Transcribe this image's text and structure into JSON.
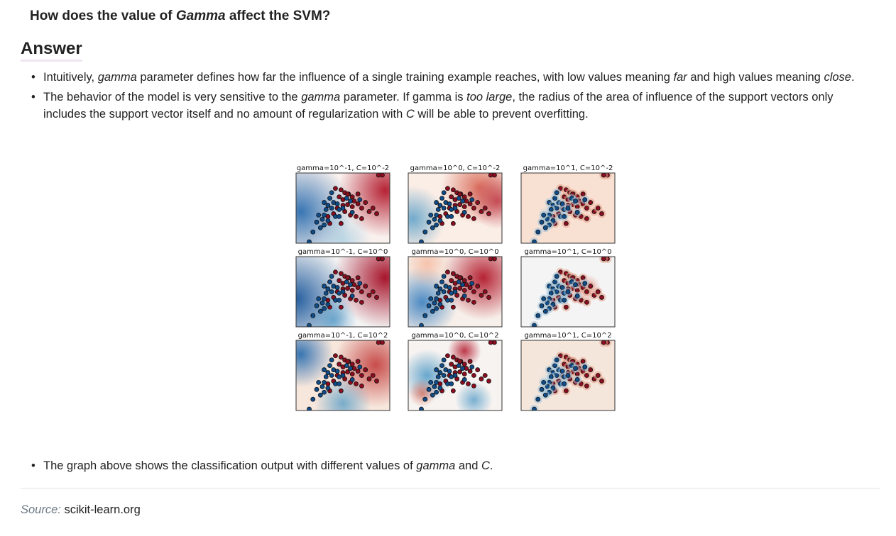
{
  "question": {
    "part1": "How does the value of ",
    "emph": "Gamma",
    "part2": " affect the SVM?"
  },
  "answer_heading": "Answer",
  "bullets": [
    {
      "t1": "Intuitively, ",
      "e1": "gamma",
      "t2": " parameter defines how far the influence of a single training example reaches, with low values meaning ",
      "e2": "far",
      "t3": " and high values meaning ",
      "e3": "close",
      "t4": "."
    },
    {
      "t1": "The behavior of the model is very sensitive to the ",
      "e1": "gamma",
      "t2": " parameter. If gamma is ",
      "e2": "too large",
      "t3": ", the radius of the area of influence of the support vectors only includes the support vector itself and no amount of regularization with ",
      "e3": "C",
      "t4": " will be able to prevent overfitting."
    }
  ],
  "figure": {
    "panel_titles": [
      "gamma=10^-1, C=10^-2",
      "gamma=10^0, C=10^-2",
      "gamma=10^1, C=10^-2",
      "gamma=10^-1, C=10^0",
      "gamma=10^0, C=10^0",
      "gamma=10^1, C=10^0",
      "gamma=10^-1, C=10^2",
      "gamma=10^0, C=10^2",
      "gamma=10^1, C=10^2"
    ],
    "colors": {
      "blue": "#0f4c8a",
      "red": "#8c0d1f",
      "light_red": "#f7ddd0",
      "white": "#f7f7f7"
    }
  },
  "bullet_bottom": {
    "t1": "The graph above shows the classification output with different values of ",
    "e1": "gamma",
    "t2": " and ",
    "e2": "C",
    "t3": "."
  },
  "source": {
    "label": "Source:",
    "text": "scikit-learn.org"
  }
}
